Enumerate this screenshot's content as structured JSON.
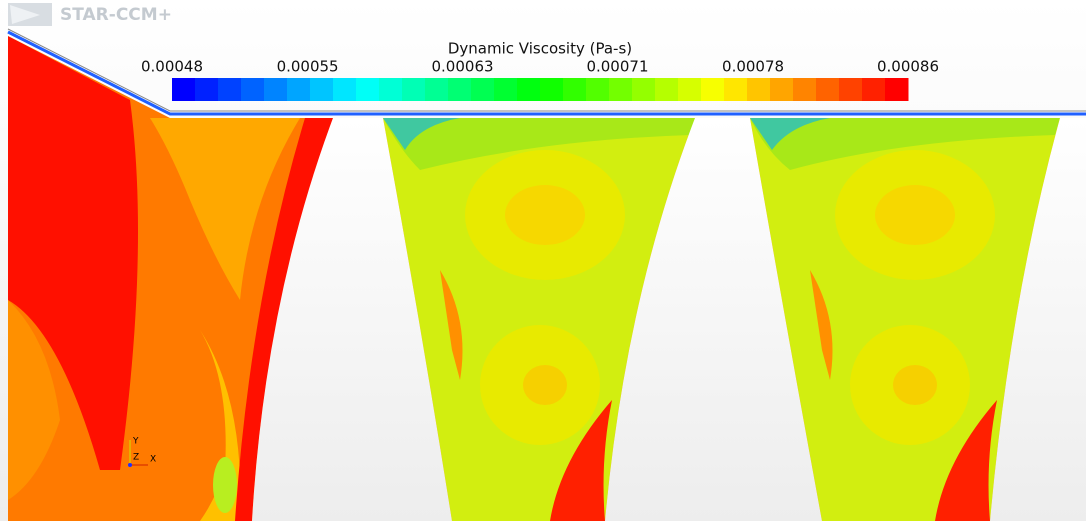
{
  "logo": "STAR-CCM+",
  "colorbar": {
    "title": "Dynamic Viscosity (Pa-s)",
    "lim": [
      0.00048,
      0.00086
    ],
    "ticks": [
      0.00048,
      0.00055,
      0.00063,
      0.00071,
      0.00078,
      0.00086
    ]
  },
  "axes_triad": {
    "y": "Y",
    "z": "Z",
    "x": "X"
  }
}
